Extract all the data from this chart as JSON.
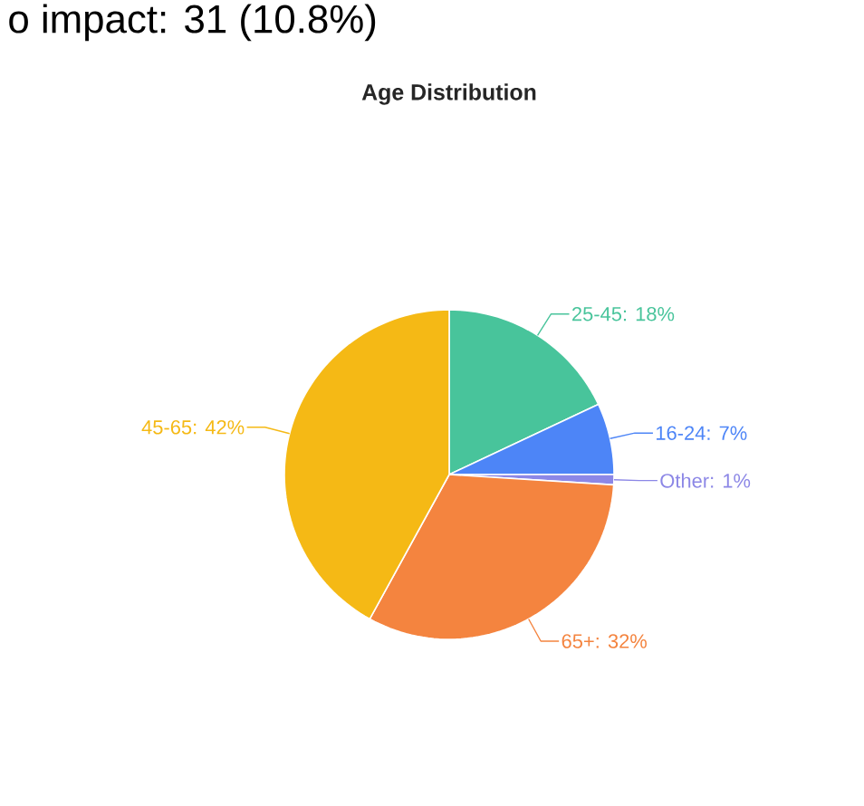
{
  "chart_data": {
    "type": "pie",
    "title": "Age Distribution",
    "categories": [
      "25-45: 18%",
      "16-24: 7%",
      "Other: 1%",
      "65+: 32%",
      "45-65: 42%"
    ],
    "values": [
      18,
      7,
      1,
      32,
      42
    ],
    "colors": [
      "#48c49b",
      "#4d85f7",
      "#8c87e6",
      "#f4843f",
      "#f5b915"
    ],
    "annotations": [
      "o impact: 31 (10.8%)"
    ]
  }
}
